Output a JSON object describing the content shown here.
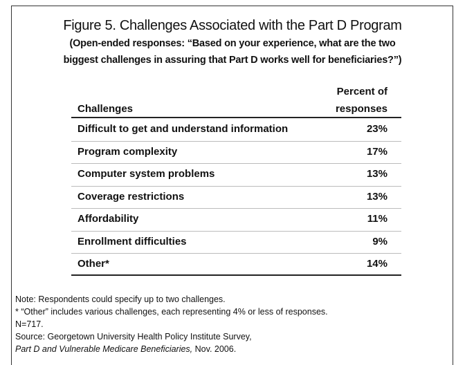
{
  "title": "Figure 5. Challenges Associated with the Part D Program",
  "subtitle": [
    "(Open-ended responses: “Based on your experience, what are the two",
    "biggest challenges in assuring that Part D works well for beneficiaries?”)"
  ],
  "table": {
    "header": [
      "Challenges",
      "Percent of",
      "responses"
    ],
    "rows": [
      [
        "Difficult to get and understand information",
        "23%"
      ],
      [
        "Program complexity",
        "17%"
      ],
      [
        "Computer system problems",
        "13%"
      ],
      [
        "Coverage restrictions",
        "13%"
      ],
      [
        "Affordability",
        "11%"
      ],
      [
        "Enrollment difficulties",
        "9%"
      ],
      [
        "Other*",
        "14%"
      ]
    ]
  },
  "notes": [
    "Note: Respondents could specify up to two challenges.",
    "* “Other” includes various challenges, each representing 4% or less of responses.",
    "N=717.",
    "Source: Georgetown University Health Policy Institute Survey,"
  ],
  "source_title": "Part D and Vulnerable Medicare Beneficiaries,",
  "source_date": " Nov. 2006."
}
